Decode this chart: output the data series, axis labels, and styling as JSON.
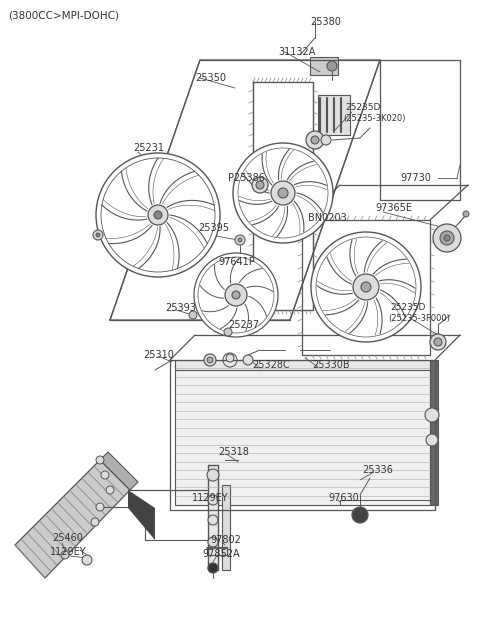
{
  "title": "(3800CC>MPI-DOHC)",
  "bg_color": "#ffffff",
  "line_color": "#555555",
  "text_color": "#333333",
  "fan_shroud_color": "#888888",
  "labels": [
    [
      "25380",
      310,
      22,
      7
    ],
    [
      "31132A",
      278,
      52,
      7
    ],
    [
      "25350",
      195,
      78,
      7
    ],
    [
      "25235D",
      345,
      108,
      6.5
    ],
    [
      "(25235-3K020)",
      343,
      119,
      6
    ],
    [
      "P25386",
      228,
      178,
      7
    ],
    [
      "97730",
      400,
      178,
      7
    ],
    [
      "25231",
      133,
      148,
      7
    ],
    [
      "25395",
      198,
      228,
      7
    ],
    [
      "BN0203",
      308,
      218,
      7
    ],
    [
      "97365E",
      375,
      208,
      7
    ],
    [
      "97641P",
      218,
      262,
      7
    ],
    [
      "25393",
      165,
      308,
      7
    ],
    [
      "25237",
      228,
      325,
      7
    ],
    [
      "25235D",
      390,
      308,
      6.5
    ],
    [
      "(25235-3F000)",
      388,
      319,
      6
    ],
    [
      "25310",
      143,
      355,
      7
    ],
    [
      "25328C",
      252,
      365,
      7
    ],
    [
      "25330B",
      312,
      365,
      7
    ],
    [
      "25318",
      218,
      452,
      7
    ],
    [
      "25336",
      362,
      470,
      7
    ],
    [
      "1129EY",
      192,
      498,
      7
    ],
    [
      "97630",
      328,
      498,
      7
    ],
    [
      "25460",
      52,
      538,
      7
    ],
    [
      "1129EY",
      50,
      552,
      7
    ],
    [
      "97802",
      210,
      540,
      7
    ],
    [
      "97852A",
      202,
      554,
      7
    ]
  ]
}
